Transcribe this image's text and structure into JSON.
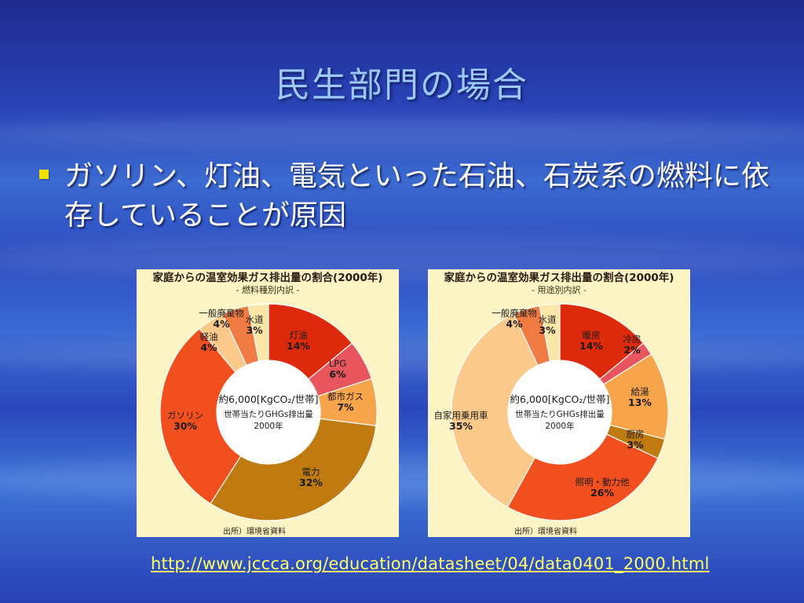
{
  "slide": {
    "title": "民生部門の場合",
    "bullet": "ガソリン、灯油、電気といった石油、石炭系の燃料に依存していることが原因",
    "link": "http://www.jccca.org/education/datasheet/04/data0401_2000.html"
  },
  "colors": {
    "title": "#9ec9ff",
    "bullet": "#f2e000",
    "link": "#ffff66",
    "panel": "#fdf4c6"
  },
  "chart_data": [
    {
      "type": "pie",
      "title": "家庭からの温室効果ガス排出量の割合(2000年)",
      "subtitle": "- 燃料種別内訳 -",
      "center_lines": [
        "約6,000[KgCO₂/世帯]",
        "世帯当たりGHGs排出量",
        "2000年"
      ],
      "source": "出所）環境省資料",
      "slices": [
        {
          "label": "灯油",
          "value": 14,
          "pct": "14%",
          "color": "#dd2a0c"
        },
        {
          "label": "LPG",
          "value": 6,
          "pct": "6%",
          "color": "#e8555c"
        },
        {
          "label": "都市ガス",
          "value": 7,
          "pct": "7%",
          "color": "#f7a44a"
        },
        {
          "label": "電力",
          "value": 32,
          "pct": "32%",
          "color": "#bf7a10"
        },
        {
          "label": "ガソリン",
          "value": 30,
          "pct": "30%",
          "color": "#f1501e"
        },
        {
          "label": "軽油",
          "value": 4,
          "pct": "4%",
          "color": "#fbc98a"
        },
        {
          "label": "一般廃棄物",
          "value": 4,
          "pct": "4%",
          "color": "#f07c44"
        },
        {
          "label": "水道",
          "value": 3,
          "pct": "3%",
          "color": "#fde7a8"
        }
      ]
    },
    {
      "type": "pie",
      "title": "家庭からの温室効果ガス排出量の割合(2000年)",
      "subtitle": "- 用途別内訳 -",
      "center_lines": [
        "約6,000[KgCO₂/世帯]",
        "世帯当たりGHGs排出量",
        "2000年"
      ],
      "source": "出所）環境省資料",
      "slices": [
        {
          "label": "暖房",
          "value": 14,
          "pct": "14%",
          "color": "#dd2a0c"
        },
        {
          "label": "冷房",
          "value": 2,
          "pct": "2%",
          "color": "#e8555c"
        },
        {
          "label": "給湯",
          "value": 13,
          "pct": "13%",
          "color": "#f7a44a"
        },
        {
          "label": "厨房",
          "value": 3,
          "pct": "3%",
          "color": "#bf7a10"
        },
        {
          "label": "照明・動力他",
          "value": 26,
          "pct": "26%",
          "color": "#f1501e"
        },
        {
          "label": "自家用乗用車",
          "value": 35,
          "pct": "35%",
          "color": "#fbc98a"
        },
        {
          "label": "一般廃棄物",
          "value": 4,
          "pct": "4%",
          "color": "#f07c44"
        },
        {
          "label": "水道",
          "value": 3,
          "pct": "3%",
          "color": "#fde7a8"
        }
      ]
    }
  ]
}
